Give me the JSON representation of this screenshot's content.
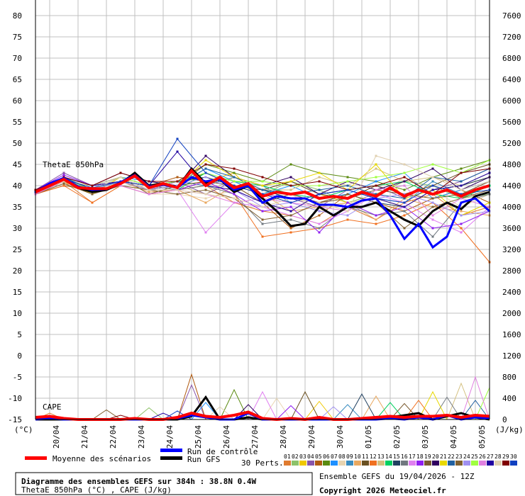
{
  "chart_data": {
    "type": "line",
    "title": "Diagramme des ensembles GEFS sur 384h : 38.8N 0.4W",
    "subtitle": "ThetaE 850hPa (°C) , CAPE (J/kg)",
    "run_info": "Ensemble GEFS du 19/04/2026 - 12Z",
    "copyright": "Copyright 2026 Meteociel.fr",
    "left_unit": "(°C)",
    "right_unit": "(J/kg)",
    "theta_label": "ThetaE 850hPa",
    "cape_label": "CAPE",
    "ylim": [
      -15,
      80
    ],
    "y2lim": [
      0,
      7600
    ],
    "yticks": [
      80,
      75,
      70,
      65,
      60,
      55,
      50,
      45,
      40,
      35,
      30,
      25,
      20,
      15,
      10,
      5,
      0,
      -5,
      -10,
      -15
    ],
    "y2ticks": [
      7600,
      7200,
      6800,
      6400,
      6000,
      5600,
      5200,
      4800,
      4400,
      4000,
      3600,
      3200,
      2800,
      2400,
      2000,
      1600,
      1200,
      800,
      400,
      0
    ],
    "x_step_hours": 12,
    "x_start": "19/04 12Z",
    "xticks": [
      "20/04",
      "21/04",
      "22/04",
      "23/04",
      "24/04",
      "25/04",
      "26/04",
      "27/04",
      "28/04",
      "29/04",
      "30/04",
      "01/05",
      "02/05",
      "03/05",
      "04/05",
      "05/05"
    ],
    "legend": {
      "mean": "Moyenne des scénarios",
      "control": "Run de contrôle",
      "gfs": "Run GFS",
      "perts": "30 Perts."
    },
    "colors": {
      "mean": "#ff0000",
      "control": "#0000ff",
      "gfs": "#000000"
    },
    "pert_colors": [
      "#e07b30",
      "#8dc26a",
      "#f0c800",
      "#8855aa",
      "#b05a10",
      "#5a8a10",
      "#1e90ff",
      "#e8d4b0",
      "#3a8dc0",
      "#e8a860",
      "#6a5020",
      "#f07020",
      "#d4c080",
      "#00d060",
      "#204060",
      "#707880",
      "#e080f0",
      "#9020f0",
      "#7a5a30",
      "#300060",
      "#e8d800",
      "#2060a0",
      "#806030",
      "#a090f0",
      "#a0ff40",
      "#e080e0",
      "#2000a0",
      "#e0d0b0",
      "#800000",
      "#1040c0"
    ],
    "pert_labels": [
      "01",
      "02",
      "03",
      "04",
      "05",
      "06",
      "07",
      "08",
      "09",
      "10",
      "11",
      "12",
      "13",
      "14",
      "15",
      "16",
      "17",
      "18",
      "19",
      "20",
      "21",
      "22",
      "23",
      "24",
      "25",
      "26",
      "27",
      "28",
      "29",
      "30"
    ],
    "theta_mean": [
      38.5,
      40,
      41.5,
      39.5,
      39.3,
      39.3,
      40.5,
      42.3,
      39.5,
      40.5,
      39.5,
      43.5,
      40,
      42,
      39.5,
      40.5,
      37.5,
      38.5,
      38,
      38.5,
      37,
      37.5,
      37,
      38.5,
      37.5,
      39.5,
      37.5,
      39,
      38,
      39,
      37.5,
      39,
      40
    ],
    "theta_control": [
      38.5,
      40.5,
      41.8,
      39.8,
      39,
      39.2,
      40.8,
      42.5,
      39.8,
      40.2,
      39.5,
      42,
      41,
      41.5,
      39,
      40,
      36,
      37.5,
      37,
      37,
      35.5,
      35.5,
      35,
      36.5,
      37,
      33,
      27.5,
      31,
      25.5,
      28,
      36,
      37,
      34
    ],
    "theta_gfs": [
      38.5,
      40.2,
      41.5,
      39.5,
      38.5,
      39,
      40.5,
      43,
      40,
      40.5,
      39.5,
      44,
      40.5,
      41.5,
      38.5,
      40,
      37,
      34,
      30.5,
      31,
      35,
      33,
      35,
      35,
      36,
      34,
      32,
      30.5,
      34,
      36,
      34.5,
      37.5,
      38.5
    ],
    "theta_perts": [
      [
        38,
        41,
        36,
        40,
        38,
        39,
        40,
        36,
        34,
        33,
        31,
        35,
        32,
        36,
        38,
        33,
        35
      ],
      [
        39,
        42,
        39,
        41,
        40,
        41,
        42,
        40,
        38,
        41,
        39,
        36,
        38,
        41,
        40,
        37,
        38
      ],
      [
        38.5,
        41,
        38,
        42,
        39,
        40,
        41,
        43,
        36,
        34,
        38,
        36,
        37,
        35,
        39,
        40,
        42
      ],
      [
        39,
        43,
        40,
        42,
        39,
        41,
        38,
        41,
        38,
        37,
        35,
        39,
        40,
        37,
        39,
        41,
        44
      ],
      [
        38,
        40,
        39,
        41,
        40,
        42,
        41,
        40,
        36,
        30,
        33,
        38,
        36,
        34,
        37,
        39,
        36
      ],
      [
        38.5,
        42,
        40,
        41,
        39,
        40,
        45,
        43,
        41,
        45,
        43,
        42,
        41,
        39,
        42,
        44,
        46
      ],
      [
        39,
        42,
        40,
        42,
        41,
        40,
        44,
        41,
        38,
        40,
        37,
        38,
        41,
        43,
        37,
        39,
        41
      ],
      [
        38,
        41,
        39,
        40,
        38,
        38,
        37,
        39,
        36,
        38,
        34,
        36,
        37,
        42,
        39,
        35,
        38
      ],
      [
        38.5,
        41.5,
        39,
        42,
        40,
        41,
        40,
        42,
        40,
        36,
        38,
        39,
        37,
        36,
        41,
        38,
        40
      ],
      [
        38,
        40.5,
        38,
        41,
        38.5,
        39,
        36,
        40,
        38,
        34,
        35,
        36,
        32,
        37,
        35,
        34,
        33
      ],
      [
        39,
        42,
        39,
        41,
        39,
        40,
        43,
        40,
        39,
        41,
        38,
        37,
        40,
        38,
        40,
        43,
        45
      ],
      [
        38,
        40,
        36,
        40,
        38,
        39,
        41,
        38,
        28,
        29,
        30,
        32,
        31,
        33,
        36,
        30,
        22
      ],
      [
        39,
        41,
        40,
        42,
        40,
        40,
        38,
        42,
        39,
        39,
        42,
        40,
        44,
        41,
        42,
        40,
        43
      ],
      [
        38.5,
        42,
        39,
        41,
        39,
        39,
        43,
        41,
        40,
        38,
        37,
        39,
        40,
        41,
        38,
        37,
        40
      ],
      [
        39,
        42,
        40,
        41,
        40,
        41,
        42,
        40,
        39,
        37,
        36,
        38,
        36,
        35,
        39,
        40,
        42
      ],
      [
        38,
        41,
        39,
        42,
        40,
        39,
        40,
        38,
        31,
        32,
        30,
        35,
        33,
        34,
        28,
        36,
        38
      ],
      [
        38.5,
        41,
        38,
        40,
        38,
        39,
        29,
        36,
        35,
        33,
        31,
        34,
        38,
        36,
        32,
        29,
        35
      ],
      [
        39,
        42.5,
        40,
        41,
        39,
        39,
        41,
        38,
        34,
        35,
        29,
        36,
        33,
        35,
        30,
        31,
        34
      ],
      [
        38,
        41,
        39,
        42,
        38,
        40,
        41,
        40,
        36,
        38,
        36,
        37,
        39,
        38,
        37,
        38,
        41
      ],
      [
        39,
        42,
        40,
        43,
        41,
        40,
        47,
        42,
        40,
        42,
        38,
        41,
        39,
        41,
        44,
        39,
        42
      ],
      [
        38.5,
        41,
        38,
        41,
        39,
        40,
        46,
        42,
        40,
        41,
        43,
        39,
        45,
        37,
        39,
        33,
        36
      ],
      [
        39,
        42,
        39,
        41,
        40,
        40,
        44,
        42,
        39,
        38,
        39,
        40,
        38,
        37,
        42,
        41,
        44
      ],
      [
        38,
        40.5,
        38,
        40,
        39,
        38,
        39,
        37,
        32,
        33,
        36,
        38,
        36,
        30,
        35,
        37,
        39
      ],
      [
        38.5,
        41,
        39,
        41,
        39,
        40,
        42,
        39,
        35,
        36,
        34,
        33,
        37,
        38,
        36,
        33,
        34
      ],
      [
        39,
        41.5,
        39,
        42,
        40,
        41,
        43,
        41,
        41,
        40,
        40,
        41,
        42,
        43,
        45,
        43,
        46
      ],
      [
        38,
        41,
        39,
        40,
        38,
        39,
        38,
        36,
        37,
        36,
        35,
        34,
        39,
        40,
        33,
        37,
        35
      ],
      [
        39,
        42,
        40,
        41,
        40,
        48,
        40,
        39,
        36,
        34,
        38,
        39,
        37,
        35,
        39,
        40,
        43
      ],
      [
        38.5,
        41,
        39,
        42,
        39,
        39,
        38,
        37,
        35,
        37,
        36,
        34,
        47,
        45,
        42,
        39,
        41
      ],
      [
        39,
        42,
        40,
        43,
        41,
        41,
        45,
        44,
        42,
        40,
        41,
        39,
        40,
        42,
        38,
        43,
        44
      ],
      [
        38.5,
        41.5,
        39.5,
        41,
        40,
        51,
        43,
        40,
        38,
        36,
        38,
        39,
        37,
        36,
        40,
        38,
        39
      ]
    ],
    "cape_mean": [
      40,
      60,
      20,
      0,
      0,
      0,
      0,
      20,
      0,
      0,
      40,
      120,
      60,
      40,
      80,
      140,
      20,
      0,
      20,
      0,
      40,
      0,
      0,
      20,
      40,
      60,
      40,
      60,
      60,
      80,
      40,
      80,
      60
    ],
    "cape_control": [
      0,
      20,
      0,
      0,
      0,
      0,
      0,
      0,
      0,
      0,
      20,
      80,
      40,
      0,
      0,
      120,
      0,
      0,
      0,
      0,
      0,
      0,
      0,
      0,
      0,
      20,
      0,
      40,
      0,
      80,
      0,
      40,
      20
    ],
    "cape_gfs": [
      0,
      0,
      0,
      0,
      0,
      0,
      0,
      0,
      0,
      0,
      0,
      60,
      420,
      0,
      0,
      40,
      0,
      0,
      0,
      0,
      0,
      0,
      0,
      0,
      40,
      40,
      80,
      120,
      0,
      60,
      120,
      40,
      0
    ],
    "cape_spikes": [
      [
        0,
        1,
        120
      ],
      [
        1,
        8,
        220
      ],
      [
        2,
        20,
        340
      ],
      [
        3,
        11,
        650
      ],
      [
        4,
        11,
        850
      ],
      [
        5,
        14,
        560
      ],
      [
        6,
        12,
        320
      ],
      [
        7,
        17,
        400
      ],
      [
        8,
        22,
        280
      ],
      [
        9,
        24,
        440
      ],
      [
        10,
        19,
        520
      ],
      [
        11,
        27,
        360
      ],
      [
        12,
        30,
        680
      ],
      [
        13,
        25,
        320
      ],
      [
        14,
        23,
        480
      ],
      [
        15,
        29,
        420
      ],
      [
        16,
        16,
        520
      ],
      [
        17,
        18,
        260
      ],
      [
        18,
        26,
        300
      ],
      [
        19,
        15,
        280
      ],
      [
        20,
        28,
        520
      ],
      [
        21,
        31,
        360
      ],
      [
        22,
        5,
        180
      ],
      [
        23,
        21,
        240
      ],
      [
        24,
        32,
        600
      ],
      [
        25,
        31,
        800
      ],
      [
        26,
        9,
        120
      ],
      [
        27,
        13,
        240
      ],
      [
        28,
        6,
        80
      ],
      [
        29,
        10,
        160
      ]
    ]
  }
}
